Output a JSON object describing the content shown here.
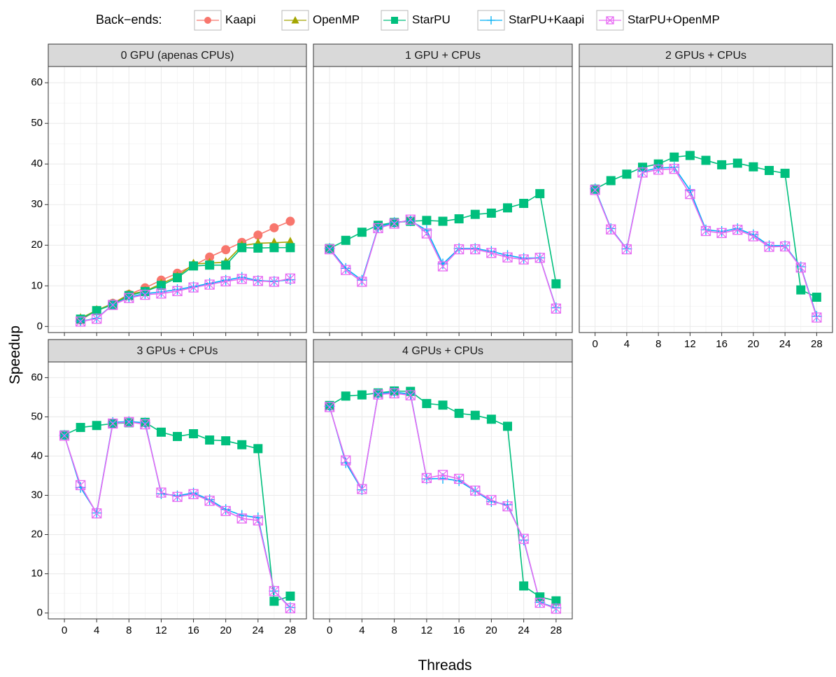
{
  "legend": {
    "title": "Back−ends:",
    "entries": [
      {
        "name": "Kaapi",
        "color": "#F8766D",
        "shape": "circle"
      },
      {
        "name": "OpenMP",
        "color": "#A3A500",
        "shape": "triangle"
      },
      {
        "name": "StarPU",
        "color": "#00BF7D",
        "shape": "square"
      },
      {
        "name": "StarPU+Kaapi",
        "color": "#00B0F6",
        "shape": "plus"
      },
      {
        "name": "StarPU+OpenMP",
        "color": "#E76BF3",
        "shape": "boxcross"
      }
    ]
  },
  "axes": {
    "xlabel": "Threads",
    "ylabel": "Speedup",
    "x_ticks": [
      "0",
      "4",
      "8",
      "12",
      "16",
      "20",
      "24",
      "28"
    ],
    "y_ticks": [
      "0",
      "10",
      "20",
      "30",
      "40",
      "50",
      "60"
    ]
  },
  "chart_data": {
    "type": "line",
    "xlim": [
      -2,
      30
    ],
    "ylim": [
      -1.5,
      64
    ],
    "grid": true,
    "legend_position": "top",
    "panels": [
      {
        "title": "0 GPU (apenas CPUs)",
        "series": [
          {
            "name": "Kaapi",
            "x": [
              2,
              4,
              6,
              8,
              10,
              12,
              14,
              16,
              18,
              20,
              22,
              24,
              26,
              28
            ],
            "y": [
              1.6,
              3.9,
              5.7,
              7.9,
              9.5,
              11.4,
              13.1,
              15,
              17.1,
              18.9,
              20.7,
              22.5,
              24.3,
              25.9
            ]
          },
          {
            "name": "OpenMP",
            "x": [
              2,
              4,
              6,
              8,
              10,
              12,
              14,
              16,
              18,
              20,
              22,
              24,
              26,
              28
            ],
            "y": [
              2,
              4,
              5.6,
              7.9,
              8.7,
              10.5,
              12.3,
              15.4,
              15.6,
              15.8,
              19.9,
              20.5,
              20.6,
              20.8
            ]
          },
          {
            "name": "StarPU",
            "x": [
              2,
              4,
              6,
              8,
              10,
              12,
              14,
              16,
              18,
              20,
              22,
              24,
              26,
              28
            ],
            "y": [
              1.8,
              3.9,
              5.4,
              7.6,
              8.6,
              10.1,
              12,
              14.9,
              15.1,
              15.1,
              19.4,
              19.3,
              19.4,
              19.4
            ]
          },
          {
            "name": "StarPU+Kaapi",
            "x": [
              2,
              4,
              6,
              8,
              10,
              12,
              14,
              16,
              18,
              20,
              22,
              24,
              26,
              28
            ],
            "y": [
              1.3,
              2,
              5.4,
              7.2,
              8.1,
              8.5,
              9.1,
              9.8,
              10.6,
              11.4,
              12.1,
              11.3,
              11.1,
              11.5
            ]
          },
          {
            "name": "StarPU+OpenMP",
            "x": [
              2,
              4,
              6,
              8,
              10,
              12,
              14,
              16,
              18,
              20,
              22,
              24,
              26,
              28
            ],
            "y": [
              1.2,
              1.9,
              5.3,
              7,
              7.8,
              8.1,
              8.7,
              9.6,
              10.3,
              11.1,
              11.7,
              11.2,
              11,
              11.8
            ]
          }
        ]
      },
      {
        "title": "1 GPU + CPUs",
        "series": [
          {
            "name": "StarPU",
            "x": [
              0,
              2,
              4,
              6,
              8,
              10,
              12,
              14,
              16,
              18,
              20,
              22,
              24,
              26,
              28
            ],
            "y": [
              19.2,
              21.2,
              23.2,
              24.9,
              25.6,
              25.9,
              26.1,
              25.9,
              26.5,
              27.6,
              27.9,
              29.2,
              30.3,
              32.7,
              10.5
            ]
          },
          {
            "name": "StarPU+Kaapi",
            "x": [
              0,
              2,
              4,
              6,
              8,
              10,
              12,
              14,
              16,
              18,
              20,
              22,
              24,
              26,
              28
            ],
            "y": [
              19.2,
              14.3,
              11.4,
              24.4,
              25.6,
              26,
              23.7,
              15.4,
              19.2,
              19.2,
              18.5,
              17.5,
              16.8,
              16.9,
              4.6
            ]
          },
          {
            "name": "StarPU+OpenMP",
            "x": [
              0,
              2,
              4,
              6,
              8,
              10,
              12,
              14,
              16,
              18,
              20,
              22,
              24,
              26,
              28
            ],
            "y": [
              19,
              13.9,
              11,
              24.2,
              25.3,
              26.3,
              22.9,
              14.8,
              19,
              19,
              18.1,
              17,
              16.5,
              16.9,
              4.4
            ]
          }
        ]
      },
      {
        "title": "2 GPUs + CPUs",
        "series": [
          {
            "name": "StarPU",
            "x": [
              0,
              2,
              4,
              6,
              8,
              10,
              12,
              14,
              16,
              18,
              20,
              22,
              24,
              26,
              28
            ],
            "y": [
              33.8,
              35.9,
              37.5,
              39.2,
              40,
              41.7,
              42.1,
              40.9,
              39.8,
              40.2,
              39.3,
              38.4,
              37.7,
              9,
              7.2
            ]
          },
          {
            "name": "StarPU+Kaapi",
            "x": [
              0,
              2,
              4,
              6,
              8,
              10,
              12,
              14,
              16,
              18,
              20,
              22,
              24,
              26,
              28
            ],
            "y": [
              33.9,
              24.1,
              19.1,
              38.2,
              39,
              39.2,
              33.5,
              23.8,
              23.4,
              24.1,
              22.6,
              19.9,
              19.9,
              14.7,
              2.5
            ]
          },
          {
            "name": "StarPU+OpenMP",
            "x": [
              0,
              2,
              4,
              6,
              8,
              10,
              12,
              14,
              16,
              18,
              20,
              22,
              24,
              26,
              28
            ],
            "y": [
              33.6,
              23.9,
              19,
              37.9,
              38.6,
              38.8,
              32.6,
              23.5,
              23,
              23.8,
              22.2,
              19.6,
              19.7,
              14.5,
              2.2
            ]
          }
        ]
      },
      {
        "title": "3 GPUs + CPUs",
        "series": [
          {
            "name": "StarPU",
            "x": [
              0,
              2,
              4,
              6,
              8,
              10,
              12,
              14,
              16,
              18,
              20,
              22,
              24,
              26,
              28
            ],
            "y": [
              45.4,
              47.3,
              47.8,
              48.3,
              48.5,
              48.6,
              46.1,
              45,
              45.7,
              44.1,
              43.9,
              42.9,
              41.9,
              3,
              4.3
            ]
          },
          {
            "name": "StarPU+Kaapi",
            "x": [
              0,
              2,
              4,
              6,
              8,
              10,
              12,
              14,
              16,
              18,
              20,
              22,
              24,
              26,
              28
            ],
            "y": [
              45.3,
              32,
              25.5,
              48.6,
              48.8,
              48.5,
              30.4,
              29.9,
              30.6,
              28.9,
              26.4,
              24.9,
              24.3,
              5.6,
              1.4
            ]
          },
          {
            "name": "StarPU+OpenMP",
            "x": [
              0,
              2,
              4,
              6,
              8,
              10,
              12,
              14,
              16,
              18,
              20,
              22,
              24,
              26,
              28
            ],
            "y": [
              45.2,
              32.6,
              25.4,
              48.3,
              48.7,
              48.1,
              30.7,
              29.6,
              30.3,
              28.6,
              26,
              24.1,
              23.6,
              5.6,
              1.2
            ]
          }
        ]
      },
      {
        "title": "4 GPUs + CPUs",
        "series": [
          {
            "name": "StarPU",
            "x": [
              0,
              2,
              4,
              6,
              8,
              10,
              12,
              14,
              16,
              18,
              20,
              22,
              24,
              26,
              28
            ],
            "y": [
              52.9,
              55.3,
              55.6,
              56.1,
              56.6,
              56.5,
              53.4,
              53,
              50.9,
              50.4,
              49.4,
              47.6,
              6.9,
              4.1,
              3.1
            ]
          },
          {
            "name": "StarPU+Kaapi",
            "x": [
              0,
              2,
              4,
              6,
              8,
              10,
              12,
              14,
              16,
              18,
              20,
              22,
              24,
              26,
              28
            ],
            "y": [
              52.7,
              38.3,
              31.4,
              55.9,
              56.3,
              55.8,
              34.2,
              34.3,
              33.7,
              31.1,
              28.4,
              27.6,
              18.6,
              2.7,
              1.3
            ]
          },
          {
            "name": "StarPU+OpenMP",
            "x": [
              0,
              2,
              4,
              6,
              8,
              10,
              12,
              14,
              16,
              18,
              20,
              22,
              24,
              26,
              28
            ],
            "y": [
              52.5,
              38.9,
              31.6,
              55.7,
              56,
              55.5,
              34.4,
              35.2,
              34.2,
              31.2,
              28.8,
              27.2,
              18.9,
              2.6,
              1.1
            ]
          }
        ]
      }
    ]
  }
}
